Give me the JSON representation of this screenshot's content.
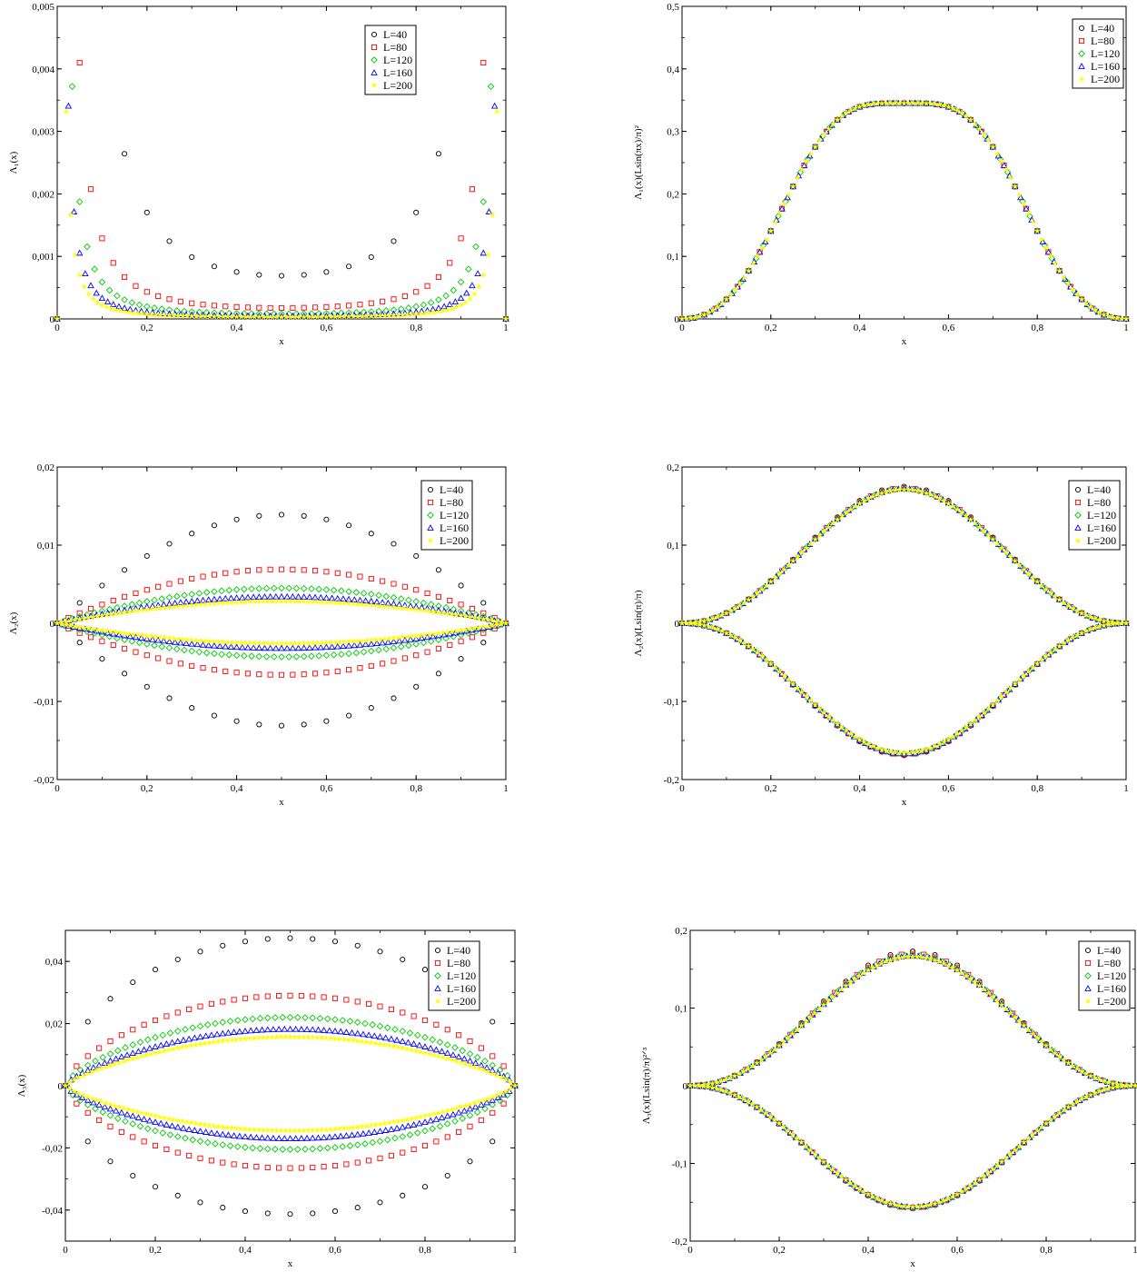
{
  "series_styles": [
    {
      "name": "L=40",
      "marker": "circle",
      "color": "#000000"
    },
    {
      "name": "L=80",
      "marker": "square",
      "color": "#ff0000"
    },
    {
      "name": "L=120",
      "marker": "diamond",
      "color": "#00cc00"
    },
    {
      "name": "L=160",
      "marker": "triangle",
      "color": "#0000ff"
    },
    {
      "name": "L=200",
      "marker": "star",
      "color": "#ffff00"
    }
  ],
  "chart_data": [
    {
      "type": "scatter",
      "panel": "top-left",
      "xlabel": "x",
      "ylabel": "Λ₁(x)",
      "xlim": [
        0,
        1
      ],
      "ylim": [
        0,
        0.005
      ],
      "xticks": [
        0,
        0.2,
        0.4,
        0.6,
        0.8,
        1
      ],
      "xtick_labels": [
        "0",
        "0,2",
        "0,4",
        "0,6",
        "0,8",
        "1"
      ],
      "yticks": [
        0,
        0.001,
        0.002,
        0.003,
        0.004,
        0.005
      ],
      "ytick_labels": [
        "0",
        "0,001",
        "0,002",
        "0,003",
        "0,004",
        "0,005"
      ],
      "legend": "top-right",
      "series": [
        {
          "name": "L=40",
          "model": "lambda1",
          "L": 40,
          "mid": 0.00069,
          "edge": 0.00443,
          "ratio": 1.0
        },
        {
          "name": "L=80",
          "model": "lambda1",
          "L": 80,
          "mid": 0.000175,
          "edge": 0.00113,
          "ratio": 1.0
        },
        {
          "name": "L=120",
          "model": "lambda1",
          "L": 120,
          "mid": 8e-05,
          "edge": 0.0005,
          "ratio": 1.0
        },
        {
          "name": "L=160",
          "model": "lambda1",
          "L": 160,
          "mid": 4.5e-05,
          "edge": 0.00029,
          "ratio": 1.0
        },
        {
          "name": "L=200",
          "model": "lambda1",
          "L": 200,
          "mid": 3e-05,
          "edge": 0.00018,
          "ratio": 1.0
        }
      ]
    },
    {
      "type": "scatter",
      "panel": "top-right",
      "xlabel": "x",
      "ylabel": "Λ₁(x)(Lsin(πx)/π)²",
      "xlim": [
        0,
        1
      ],
      "ylim": [
        0,
        0.5
      ],
      "xticks": [
        0,
        0.2,
        0.4,
        0.6,
        0.8,
        1
      ],
      "xtick_labels": [
        "0",
        "0,2",
        "0,4",
        "0,6",
        "0,8",
        "1"
      ],
      "yticks": [
        0,
        0.1,
        0.2,
        0.3,
        0.4,
        0.5
      ],
      "ytick_labels": [
        "0",
        "0,1",
        "0,2",
        "0,3",
        "0,4",
        "0,5"
      ],
      "legend": "top-right",
      "series": [
        {
          "name": "L=40",
          "model": "scaled1",
          "L": 40
        },
        {
          "name": "L=80",
          "model": "scaled1",
          "L": 80
        },
        {
          "name": "L=120",
          "model": "scaled1",
          "L": 120
        },
        {
          "name": "L=160",
          "model": "scaled1",
          "L": 160
        },
        {
          "name": "L=200",
          "model": "scaled1",
          "L": 200
        }
      ]
    },
    {
      "type": "scatter",
      "panel": "middle-left",
      "xlabel": "x",
      "ylabel": "Λ₂(x)",
      "xlim": [
        0,
        1
      ],
      "ylim": [
        -0.02,
        0.02
      ],
      "xticks": [
        0,
        0.2,
        0.4,
        0.6,
        0.8,
        1
      ],
      "xtick_labels": [
        "0",
        "0,2",
        "0,4",
        "0,6",
        "0,8",
        "1"
      ],
      "yticks": [
        -0.02,
        -0.01,
        0,
        0.01,
        0.02
      ],
      "ytick_labels": [
        "-0,02",
        "-0,01",
        "0",
        "0,01",
        "0,02"
      ],
      "legend": "top-right",
      "series": [
        {
          "name": "L=40",
          "model": "lens",
          "L": 40,
          "amp_up": 0.0139,
          "amp_down": 0.0131,
          "power": 0.9
        },
        {
          "name": "L=80",
          "model": "lens",
          "L": 80,
          "amp_up": 0.0069,
          "amp_down": 0.0066,
          "power": 0.9
        },
        {
          "name": "L=120",
          "model": "lens",
          "L": 120,
          "amp_up": 0.0045,
          "amp_down": 0.0043,
          "power": 0.9
        },
        {
          "name": "L=160",
          "model": "lens",
          "L": 160,
          "amp_up": 0.0034,
          "amp_down": 0.0032,
          "power": 0.9
        },
        {
          "name": "L=200",
          "model": "lens",
          "L": 200,
          "amp_up": 0.0028,
          "amp_down": 0.0026,
          "power": 0.9
        }
      ]
    },
    {
      "type": "scatter",
      "panel": "middle-right",
      "xlabel": "x",
      "ylabel": "Λ₂(x)(Lsin(π)/π)",
      "xlim": [
        0,
        1
      ],
      "ylim": [
        -0.2,
        0.2
      ],
      "xticks": [
        0,
        0.2,
        0.4,
        0.6,
        0.8,
        1
      ],
      "xtick_labels": [
        "0",
        "0,2",
        "0,4",
        "0,6",
        "0,8",
        "1"
      ],
      "yticks": [
        -0.2,
        -0.1,
        0,
        0.1,
        0.2
      ],
      "ytick_labels": [
        "-0,2",
        "-0,1",
        "0",
        "0,1",
        "0,2"
      ],
      "legend": "top-right",
      "series": [
        {
          "name": "L=40",
          "model": "bell",
          "L": 40,
          "amp_up": 0.175,
          "amp_down": 0.169
        },
        {
          "name": "L=80",
          "model": "bell",
          "L": 80,
          "amp_up": 0.173,
          "amp_down": 0.168
        },
        {
          "name": "L=120",
          "model": "bell",
          "L": 120,
          "amp_up": 0.172,
          "amp_down": 0.167
        },
        {
          "name": "L=160",
          "model": "bell",
          "L": 160,
          "amp_up": 0.172,
          "amp_down": 0.167
        },
        {
          "name": "L=200",
          "model": "bell",
          "L": 200,
          "amp_up": 0.171,
          "amp_down": 0.166
        }
      ]
    },
    {
      "type": "scatter",
      "panel": "bottom-left",
      "xlabel": "x",
      "ylabel": "Λ₃(x)",
      "xlim": [
        0,
        1
      ],
      "ylim": [
        -0.05,
        0.05
      ],
      "xticks": [
        0,
        0.2,
        0.4,
        0.6,
        0.8,
        1
      ],
      "xtick_labels": [
        "0",
        "0,2",
        "0,4",
        "0,6",
        "0,8",
        "1"
      ],
      "yticks": [
        -0.04,
        -0.02,
        0,
        0.02,
        0.04
      ],
      "ytick_labels": [
        "-0,04",
        "-0,02",
        "0",
        "0,02",
        "0,04"
      ],
      "legend": "top-right",
      "series": [
        {
          "name": "L=40",
          "model": "lens",
          "L": 40,
          "amp_up": 0.0475,
          "amp_down": 0.0413,
          "power": 0.45
        },
        {
          "name": "L=80",
          "model": "lens",
          "L": 80,
          "amp_up": 0.029,
          "amp_down": 0.0265,
          "power": 0.6
        },
        {
          "name": "L=120",
          "model": "lens",
          "L": 120,
          "amp_up": 0.022,
          "amp_down": 0.0205,
          "power": 0.65
        },
        {
          "name": "L=160",
          "model": "lens",
          "L": 160,
          "amp_up": 0.0182,
          "amp_down": 0.017,
          "power": 0.7
        },
        {
          "name": "L=200",
          "model": "lens",
          "L": 200,
          "amp_up": 0.0157,
          "amp_down": 0.0145,
          "power": 0.75
        }
      ]
    },
    {
      "type": "scatter",
      "panel": "bottom-right",
      "xlabel": "x",
      "ylabel": "Λ₃(x)(Lsin(π)/π)²ᐟ³",
      "xlim": [
        0,
        1
      ],
      "ylim": [
        -0.2,
        0.2
      ],
      "xticks": [
        0,
        0.2,
        0.4,
        0.6,
        0.8,
        1
      ],
      "xtick_labels": [
        "0",
        "0,2",
        "0,4",
        "0,6",
        "0,8",
        "1"
      ],
      "yticks": [
        -0.2,
        -0.1,
        0,
        0.1,
        0.2
      ],
      "ytick_labels": [
        "-0,2",
        "-0,1",
        "0",
        "0,1",
        "0,2"
      ],
      "legend": "top-right",
      "series": [
        {
          "name": "L=40",
          "model": "bell",
          "L": 40,
          "amp_up": 0.173,
          "amp_down": 0.158
        },
        {
          "name": "L=80",
          "model": "bell",
          "L": 80,
          "amp_up": 0.17,
          "amp_down": 0.157
        },
        {
          "name": "L=120",
          "model": "bell",
          "L": 120,
          "amp_up": 0.168,
          "amp_down": 0.157
        },
        {
          "name": "L=160",
          "model": "bell",
          "L": 160,
          "amp_up": 0.167,
          "amp_down": 0.156
        },
        {
          "name": "L=200",
          "model": "bell",
          "L": 200,
          "amp_up": 0.166,
          "amp_down": 0.156
        }
      ]
    }
  ]
}
